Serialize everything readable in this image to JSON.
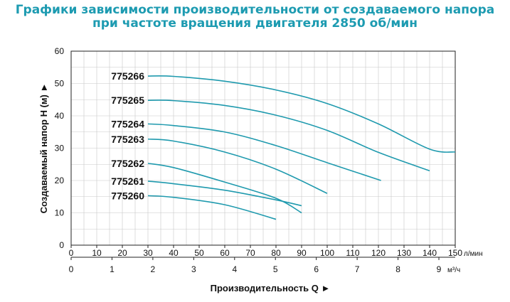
{
  "header": {
    "title_line1": "Графики зависимости производительности от создаваемого напора",
    "title_line2": "при частоте вращения двигателя 2850 об/мин"
  },
  "chart_data": {
    "type": "line",
    "ylabel": "Создаваемый напор H (м) ►",
    "xlabel": "Производительность Q ►",
    "x_unit_primary": "л/мин",
    "x_unit_secondary": "м³/ч",
    "ylim": [
      0,
      60
    ],
    "y_ticks": [
      0,
      10,
      20,
      30,
      40,
      50,
      60
    ],
    "xlim": [
      0,
      150
    ],
    "x_ticks_primary": [
      0,
      10,
      20,
      30,
      40,
      50,
      60,
      70,
      80,
      90,
      100,
      110,
      120,
      130,
      140,
      150
    ],
    "x_ticks_secondary": [
      0,
      1,
      2,
      3,
      4,
      5,
      6,
      7,
      8,
      9
    ],
    "grid": true,
    "curve_color": "#1f9aae",
    "series": [
      {
        "name": "775266",
        "x": [
          30,
          40,
          60,
          80,
          100,
          120,
          140,
          150
        ],
        "y": [
          52.3,
          52.2,
          50.7,
          48.0,
          43.8,
          37.5,
          29.7,
          28.8
        ]
      },
      {
        "name": "775265",
        "x": [
          30,
          40,
          60,
          80,
          100,
          120,
          140
        ],
        "y": [
          44.8,
          44.7,
          43.2,
          40.2,
          35.5,
          28.7,
          23.0
        ]
      },
      {
        "name": "775264",
        "x": [
          30,
          40,
          60,
          80,
          100,
          121
        ],
        "y": [
          37.5,
          37.0,
          35.0,
          30.8,
          25.5,
          20.0
        ]
      },
      {
        "name": "775263",
        "x": [
          30,
          40,
          60,
          80,
          100
        ],
        "y": [
          32.8,
          32.2,
          28.8,
          23.5,
          16.0
        ]
      },
      {
        "name": "775262",
        "x": [
          30,
          40,
          60,
          80,
          90
        ],
        "y": [
          25.3,
          24.0,
          19.5,
          14.5,
          10.0
        ]
      },
      {
        "name": "775261",
        "x": [
          30,
          40,
          60,
          80,
          90
        ],
        "y": [
          19.8,
          19.0,
          17.0,
          14.0,
          12.2
        ]
      },
      {
        "name": "775260",
        "x": [
          30,
          40,
          60,
          80
        ],
        "y": [
          15.3,
          14.8,
          12.5,
          8.0
        ]
      }
    ]
  }
}
